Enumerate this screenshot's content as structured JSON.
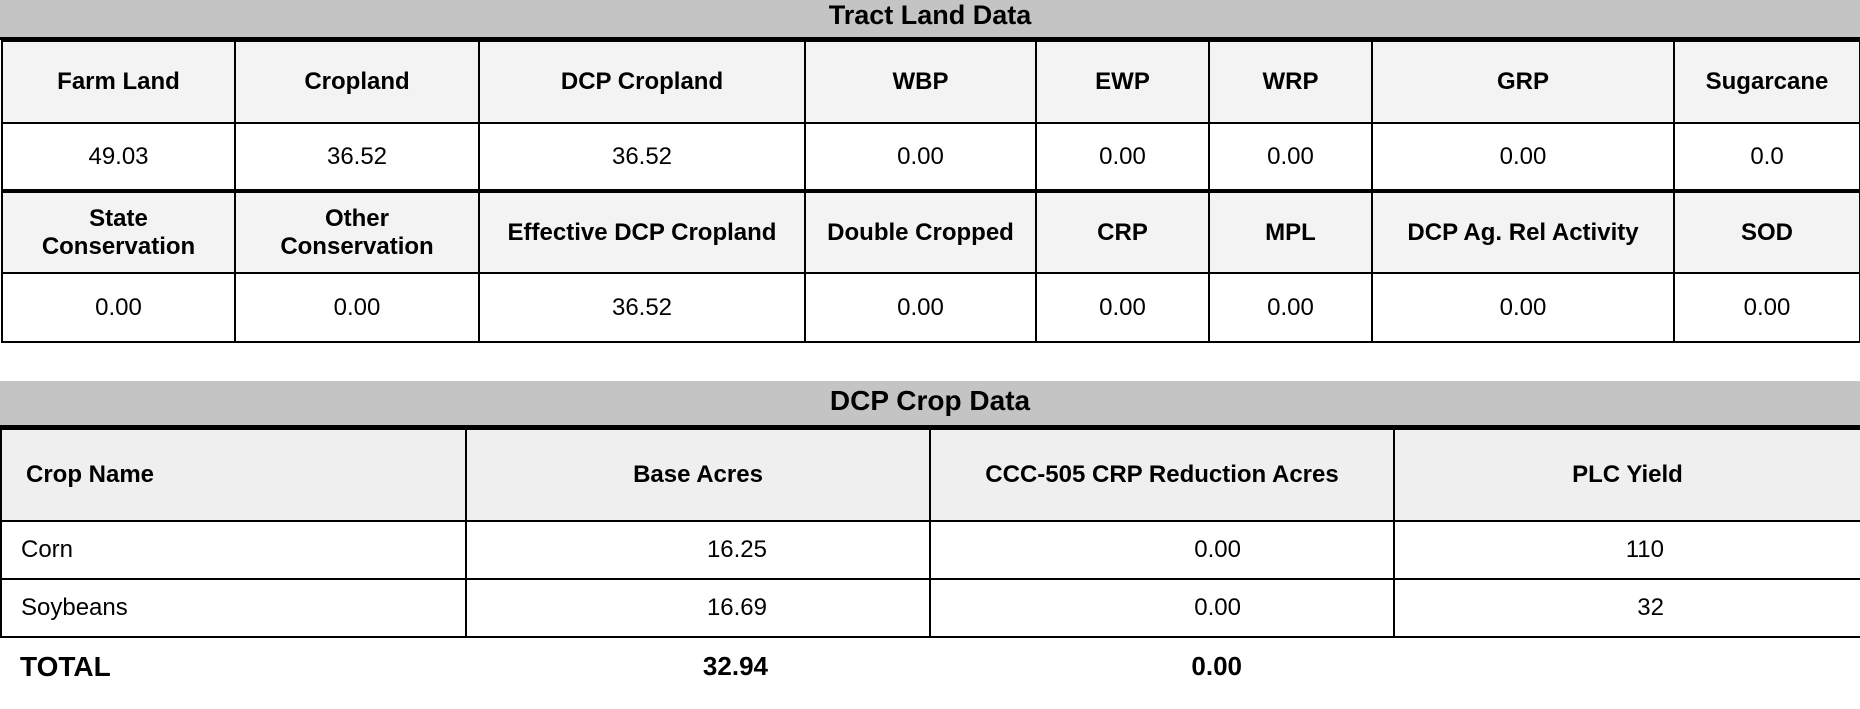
{
  "tract": {
    "title": "Tract Land Data",
    "row1_headers": [
      "Farm Land",
      "Cropland",
      "DCP Cropland",
      "WBP",
      "EWP",
      "WRP",
      "GRP",
      "Sugarcane"
    ],
    "row1_values": [
      "49.03",
      "36.52",
      "36.52",
      "0.00",
      "0.00",
      "0.00",
      "0.00",
      "0.0"
    ],
    "row2_headers": [
      "State\nConservation",
      "Other\nConservation",
      "Effective DCP Cropland",
      "Double Cropped",
      "CRP",
      "MPL",
      "DCP Ag. Rel Activity",
      "SOD"
    ],
    "row2_values": [
      "0.00",
      "0.00",
      "36.52",
      "0.00",
      "0.00",
      "0.00",
      "0.00",
      "0.00"
    ]
  },
  "crop": {
    "title": "DCP Crop Data",
    "headers": [
      "Crop Name",
      "Base Acres",
      "CCC-505 CRP Reduction Acres",
      "PLC Yield"
    ],
    "rows": [
      {
        "name": "Corn",
        "base_acres": "16.25",
        "crp_reduction": "0.00",
        "plc_yield": "110"
      },
      {
        "name": "Soybeans",
        "base_acres": "16.69",
        "crp_reduction": "0.00",
        "plc_yield": "32"
      }
    ],
    "total": {
      "label": "TOTAL",
      "base_acres": "32.94",
      "crp_reduction": "0.00"
    }
  }
}
